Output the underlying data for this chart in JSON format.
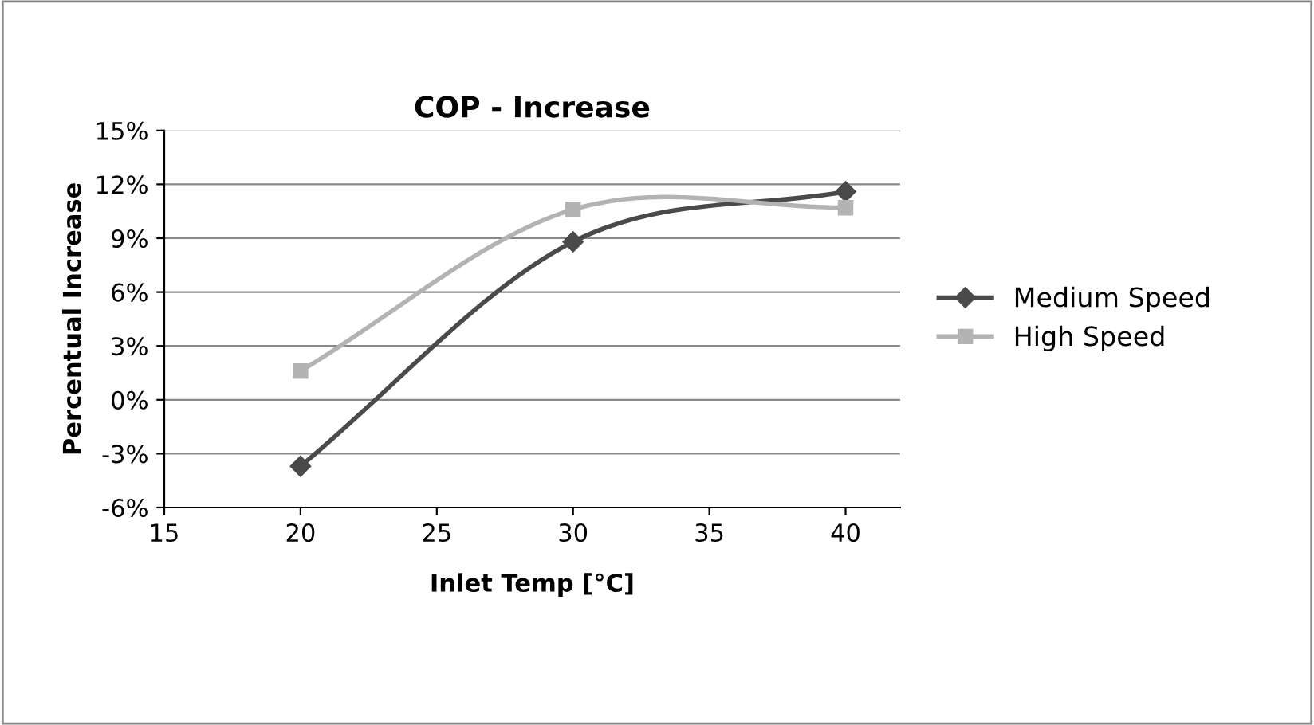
{
  "chart_data": {
    "type": "line",
    "title": "COP - Increase",
    "xlabel": "Inlet Temp [°C]",
    "ylabel": "Percentual Increase",
    "xlim": [
      15,
      42
    ],
    "xticks": [
      15,
      20,
      25,
      30,
      35,
      40
    ],
    "ylim": [
      -6,
      15
    ],
    "yticks": [
      {
        "value": -6,
        "label": "-6%"
      },
      {
        "value": -3,
        "label": "-3%"
      },
      {
        "value": 0,
        "label": "0%"
      },
      {
        "value": 3,
        "label": "3%"
      },
      {
        "value": 6,
        "label": "6%"
      },
      {
        "value": 9,
        "label": "9%"
      },
      {
        "value": 12,
        "label": "12%"
      },
      {
        "value": 15,
        "label": "15%"
      }
    ],
    "grid": "y",
    "legend": "right",
    "line_style": "solid",
    "x": [
      20,
      30,
      40
    ],
    "series": [
      {
        "name": "Medium Speed",
        "color": "#4a4a4a",
        "marker": "diamond",
        "values": [
          -3.7,
          8.8,
          11.6
        ]
      },
      {
        "name": "High Speed",
        "color": "#b3b3b3",
        "marker": "square",
        "values": [
          1.6,
          10.6,
          10.7
        ]
      }
    ]
  }
}
